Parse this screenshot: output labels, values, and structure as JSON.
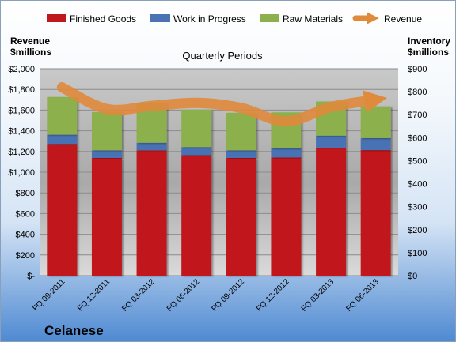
{
  "chart_data": {
    "type": "bar",
    "stacked": true,
    "title": "Quarterly Periods",
    "company": "Celanese",
    "categories": [
      "FQ 09-2011",
      "FQ 12-2011",
      "FQ 03-2012",
      "FQ 06-2012",
      "FQ 09-2012",
      "FQ 12-2012",
      "FQ 03-2013",
      "FQ 06-2013"
    ],
    "left_axis": {
      "label_line1": "Revenue",
      "label_line2": "$millions",
      "ylim": [
        0,
        2000
      ],
      "ticks": [
        "$-",
        "$200",
        "$400",
        "$600",
        "$800",
        "$1,000",
        "$1,200",
        "$1,400",
        "$1,600",
        "$1,800",
        "$2,000"
      ]
    },
    "right_axis": {
      "label_line1": "Inventory",
      "label_line2": "$millions",
      "ylim": [
        0,
        900
      ],
      "ticks": [
        "$0",
        "$100",
        "$200",
        "$300",
        "$400",
        "$500",
        "$600",
        "$700",
        "$800",
        "$900"
      ]
    },
    "series": [
      {
        "name": "Finished Goods",
        "axis": "right",
        "color": "#c0181c",
        "values": [
          573,
          512,
          545,
          524,
          512,
          514,
          557,
          546
        ]
      },
      {
        "name": "Work in Progress",
        "axis": "right",
        "color": "#4a72b4",
        "values": [
          40,
          33,
          33,
          35,
          33,
          40,
          52,
          52
        ]
      },
      {
        "name": "Raw Materials",
        "axis": "right",
        "color": "#8cb04c",
        "values": [
          164,
          166,
          172,
          163,
          163,
          156,
          148,
          138
        ]
      },
      {
        "name": "Revenue",
        "axis": "left",
        "type": "line",
        "color": "#e08a3c",
        "values": [
          1820,
          1610,
          1640,
          1670,
          1620,
          1490,
          1630,
          1700
        ]
      }
    ],
    "grid": true,
    "legend": "top"
  }
}
